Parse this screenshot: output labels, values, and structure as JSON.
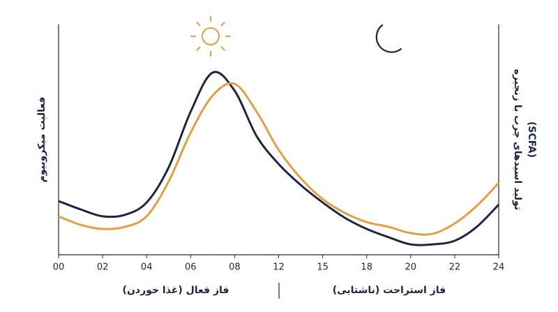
{
  "chart_data": {
    "type": "line",
    "y_label_left": "فعالیت میکروبیوم",
    "y_label_right": [
      "تولید اسیدهای چرب با زنجیره",
      "(SCFA)"
    ],
    "phase_left": "فاز فعال (غذا خوردن)",
    "phase_right": "فاز استراحت (ناشتایی)",
    "xlim": [
      0,
      10
    ],
    "xticks": [
      {
        "value": 0,
        "label": "00"
      },
      {
        "value": 1,
        "label": "02"
      },
      {
        "value": 2,
        "label": "04"
      },
      {
        "value": 3,
        "label": "06"
      },
      {
        "value": 4,
        "label": "08"
      },
      {
        "value": 5,
        "label": "12"
      },
      {
        "value": 6,
        "label": "15"
      },
      {
        "value": 7,
        "label": "18"
      },
      {
        "value": 8,
        "label": "20"
      },
      {
        "value": 9,
        "label": "22"
      },
      {
        "value": 10,
        "label": "24"
      }
    ],
    "ylim": [
      0,
      100
    ],
    "x": [
      0,
      0.5,
      1,
      1.5,
      2,
      2.5,
      3,
      3.5,
      4,
      4.5,
      5,
      5.5,
      6,
      6.5,
      7,
      7.5,
      8,
      8.5,
      9,
      9.5,
      10
    ],
    "series": [
      {
        "color": "#1c2541",
        "values": [
          23.3,
          19.7,
          16.7,
          17.3,
          22.7,
          37.9,
          62.1,
          79.1,
          71.2,
          51.5,
          39.4,
          30.3,
          22.7,
          16.1,
          11.2,
          7.6,
          4.5,
          4.5,
          6.1,
          12.1,
          21.8
        ]
      },
      {
        "color": "#e0a040",
        "values": [
          16.7,
          13,
          11.2,
          12.1,
          16.7,
          31.8,
          53,
          69.1,
          74.2,
          62.1,
          45.5,
          33.3,
          24.2,
          18.2,
          14.2,
          12.1,
          9.4,
          9.1,
          13.6,
          21.2,
          31.2
        ]
      }
    ]
  }
}
